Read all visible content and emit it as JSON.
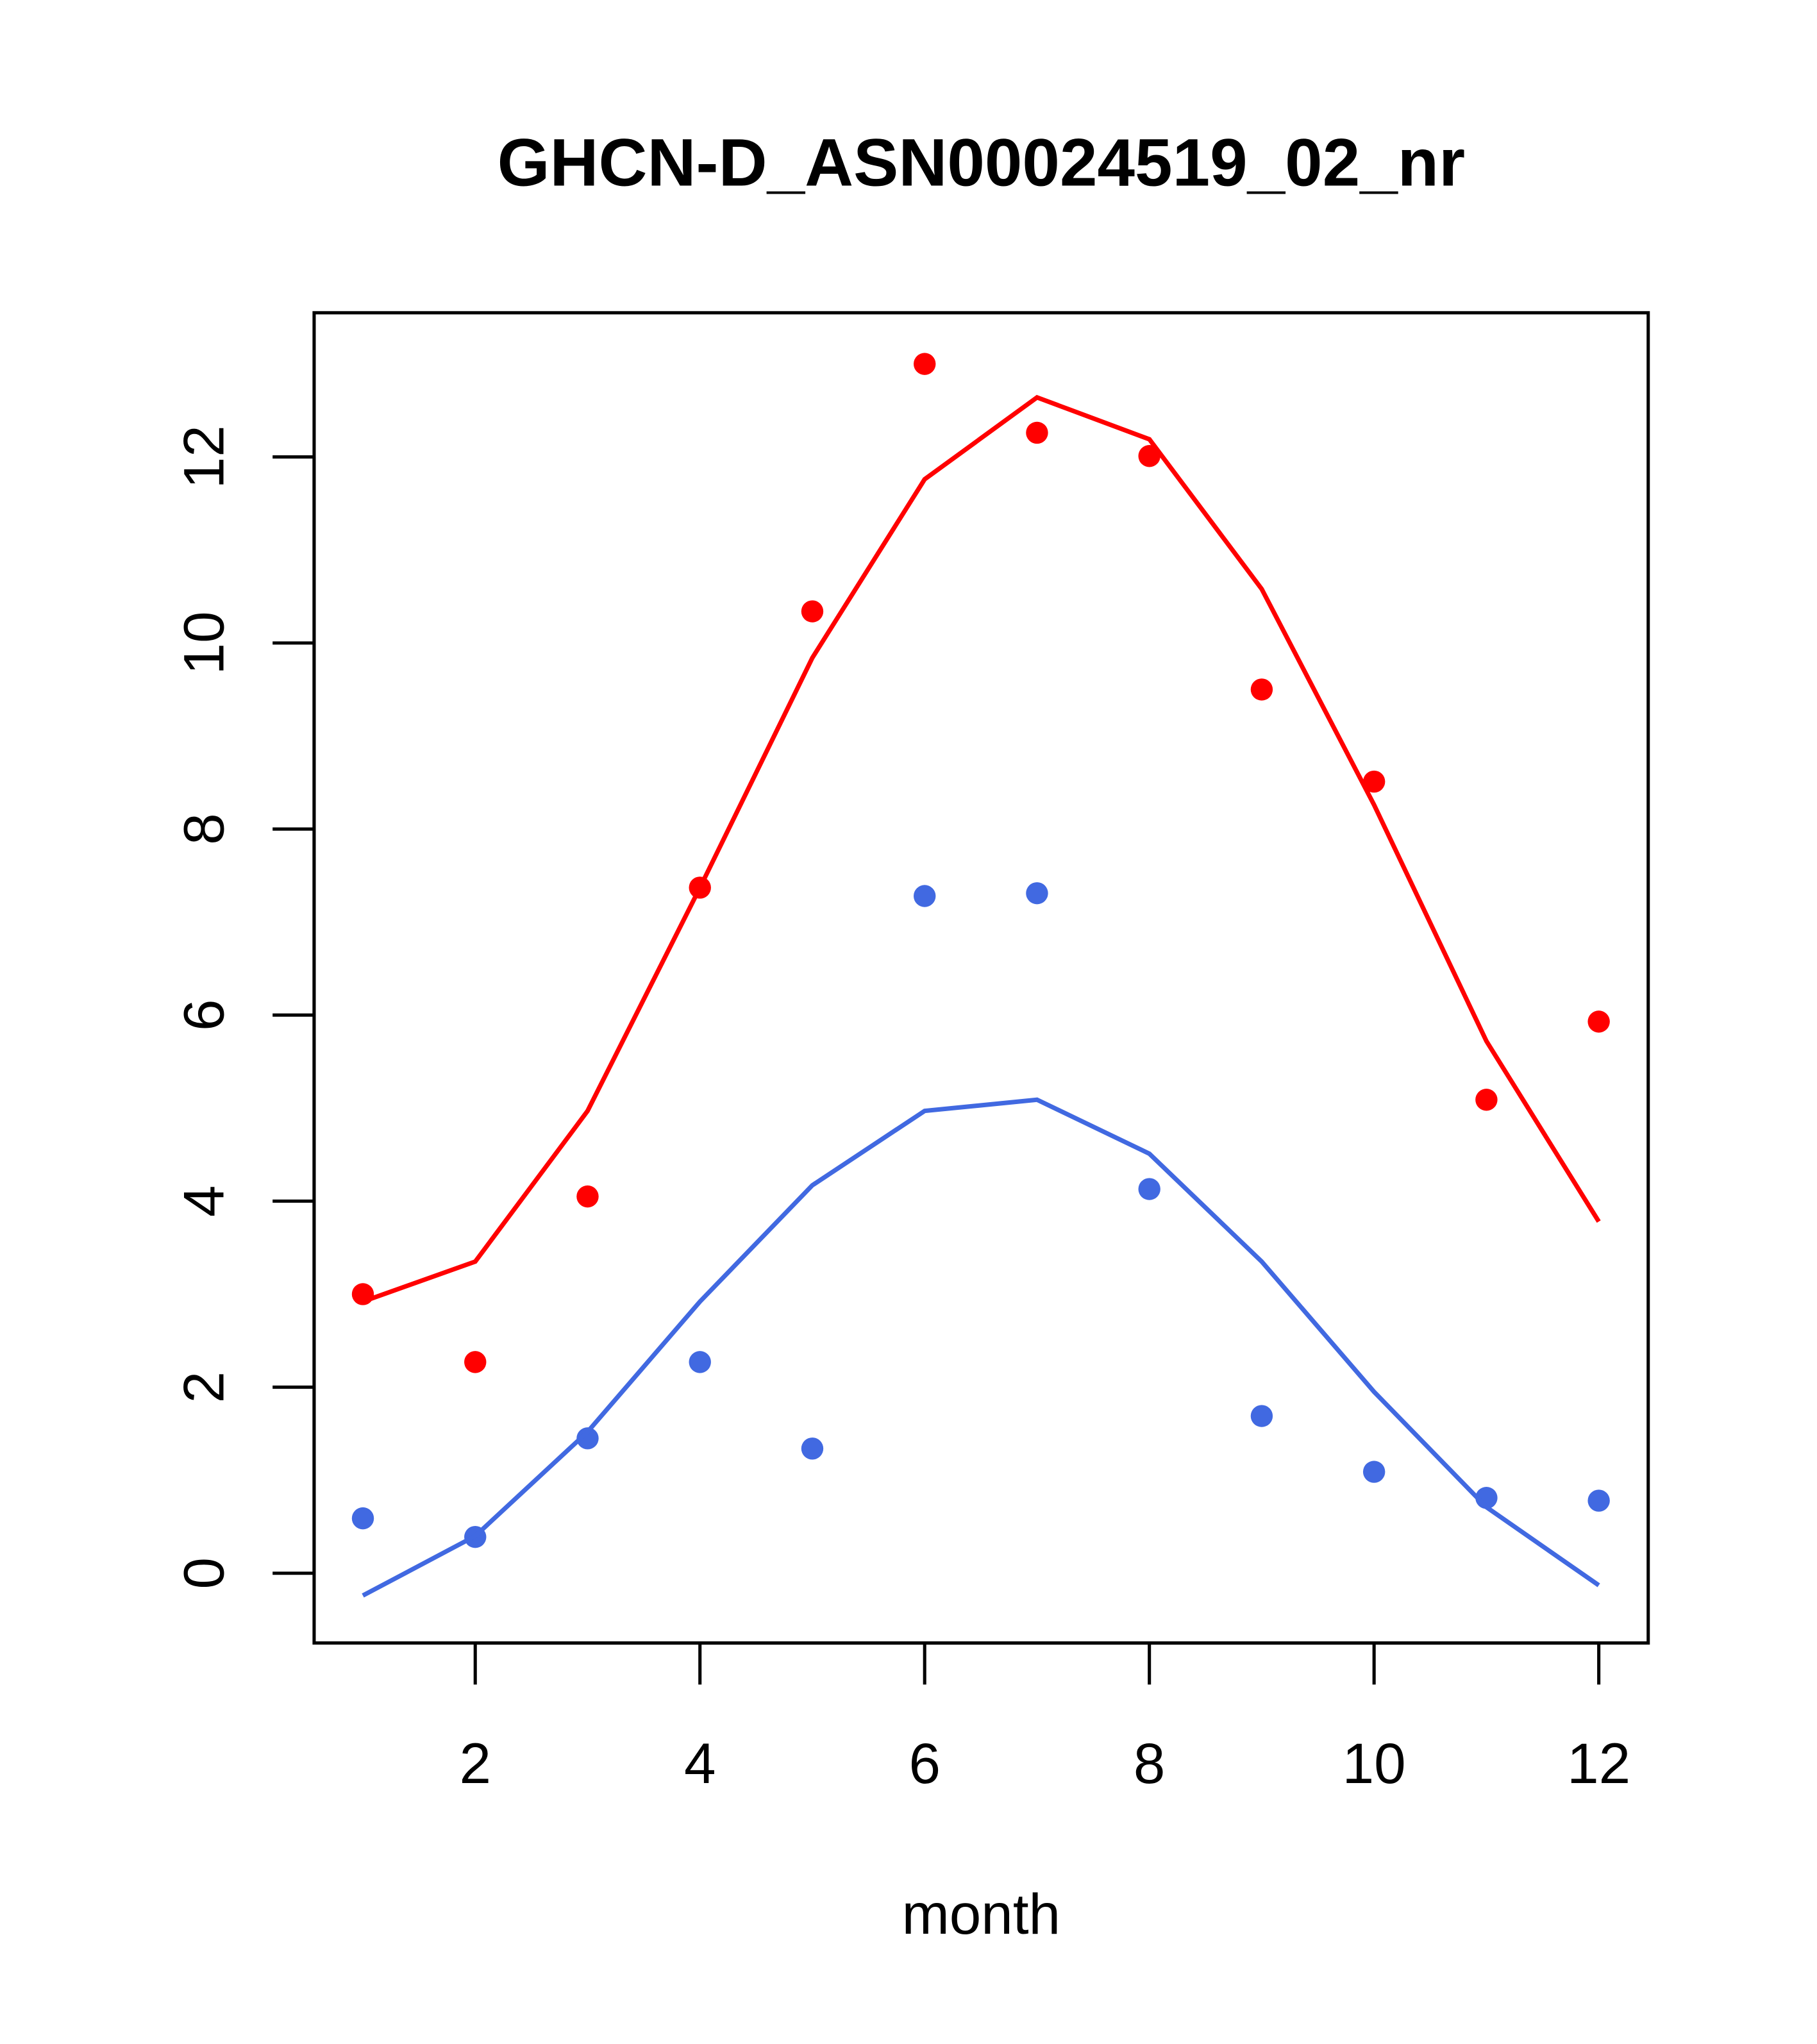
{
  "chart_data": {
    "type": "scatter",
    "title": "GHCN-D_ASN00024519_02_nr",
    "xlabel": "month",
    "ylabel": "",
    "xlim": [
      0.566,
      12.44
    ],
    "ylim": [
      -0.75,
      13.55
    ],
    "x_ticks": [
      2,
      4,
      6,
      8,
      10,
      12
    ],
    "y_ticks": [
      0,
      2,
      4,
      6,
      8,
      10,
      12
    ],
    "x": [
      1,
      2,
      3,
      4,
      5,
      6,
      7,
      8,
      9,
      10,
      11,
      12
    ],
    "series": [
      {
        "name": "red-points",
        "kind": "points",
        "color": "#FF0000",
        "values": [
          3.0,
          2.27,
          4.05,
          7.37,
          10.34,
          13.0,
          12.26,
          12.01,
          9.5,
          8.51,
          5.09,
          5.93
        ]
      },
      {
        "name": "red-line",
        "kind": "line",
        "color": "#FF0000",
        "values": [
          2.92,
          3.35,
          4.97,
          7.37,
          9.84,
          11.76,
          12.64,
          12.19,
          10.58,
          8.26,
          5.72,
          3.78
        ]
      },
      {
        "name": "blue-points",
        "kind": "points",
        "color": "#4169E1",
        "values": [
          0.59,
          0.39,
          1.45,
          2.27,
          1.34,
          7.28,
          7.31,
          4.13,
          1.69,
          1.09,
          0.81,
          0.78
        ]
      },
      {
        "name": "blue-line",
        "kind": "line",
        "color": "#4169E1",
        "values": [
          -0.24,
          0.4,
          1.52,
          2.92,
          4.17,
          4.97,
          5.09,
          4.51,
          3.35,
          1.95,
          0.71,
          -0.13
        ]
      }
    ],
    "grid": false,
    "legend": "none"
  }
}
